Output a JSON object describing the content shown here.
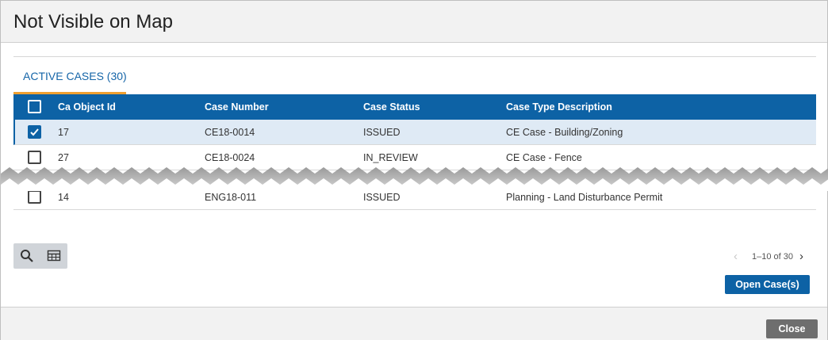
{
  "dialog": {
    "title": "Not Visible on Map",
    "tab_label": "ACTIVE CASES (30)"
  },
  "table": {
    "columns": [
      "Ca Object Id",
      "Case Number",
      "Case Status",
      "Case Type Description"
    ],
    "rows": [
      {
        "id": "17",
        "case_number": "CE18-0014",
        "status": "ISSUED",
        "type": "CE Case - Building/Zoning",
        "checked": true
      },
      {
        "id": "27",
        "case_number": "CE18-0024",
        "status": "IN_REVIEW",
        "type": "CE Case - Fence",
        "checked": false
      },
      {
        "id": "14",
        "case_number": "ENG18-011",
        "status": "ISSUED",
        "type": "Planning - Land Disturbance Permit",
        "checked": false
      }
    ]
  },
  "toolbar": {
    "search_icon": "search-icon",
    "columns_icon": "table-columns-icon"
  },
  "pager": {
    "range": "1–10 of 30"
  },
  "actions": {
    "open_label": "Open Case(s)",
    "close_label": "Close"
  },
  "colors": {
    "header_blue": "#0d62a5",
    "tab_accent": "#f0a030",
    "selected_row": "#dfeaf5"
  }
}
